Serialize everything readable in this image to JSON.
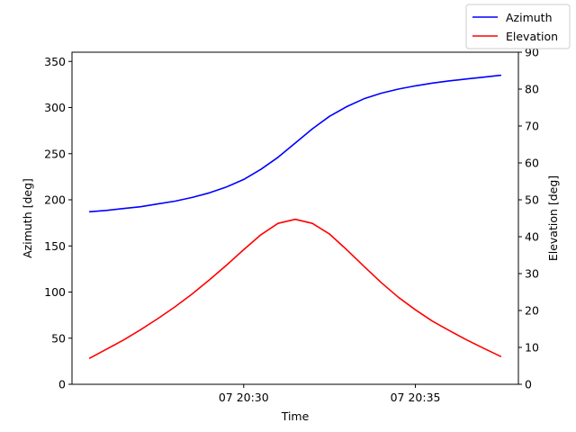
{
  "chart_data": {
    "type": "line",
    "xlabel": "Time",
    "x_ticks": [
      "07 20:30",
      "07 20:35"
    ],
    "x": [
      "20:25:30",
      "20:26:00",
      "20:26:30",
      "20:27:00",
      "20:27:30",
      "20:28:00",
      "20:28:30",
      "20:29:00",
      "20:29:30",
      "20:30:00",
      "20:30:30",
      "20:31:00",
      "20:31:30",
      "20:32:00",
      "20:32:30",
      "20:33:00",
      "20:33:30",
      "20:34:00",
      "20:34:30",
      "20:35:00",
      "20:35:30",
      "20:36:00",
      "20:36:30",
      "20:37:00",
      "20:37:30"
    ],
    "xlim": [
      "20:25:00",
      "20:38:00"
    ],
    "left_axis": {
      "label": "Azimuth [deg]",
      "ylim": [
        0,
        360
      ],
      "ticks": [
        0,
        50,
        100,
        150,
        200,
        250,
        300,
        350
      ]
    },
    "right_axis": {
      "label": "Elevation [deg]",
      "ylim": [
        0,
        90
      ],
      "ticks": [
        0,
        10,
        20,
        30,
        40,
        50,
        60,
        70,
        80,
        90
      ]
    },
    "series": [
      {
        "name": "Azimuth",
        "axis": "left",
        "color": "#0000ff",
        "values": [
          187,
          188.5,
          190.5,
          192.5,
          195.5,
          198.5,
          202.5,
          207.5,
          214,
          222,
          233,
          246,
          261.5,
          277,
          290.5,
          301,
          309.5,
          315.5,
          320,
          323.5,
          326.5,
          329,
          331,
          333,
          335
        ]
      },
      {
        "name": "Elevation",
        "axis": "right",
        "color": "#ff0000",
        "values": [
          7,
          9.5,
          12,
          14.8,
          17.8,
          21,
          24.5,
          28.3,
          32.3,
          36.5,
          40.5,
          43.6,
          44.7,
          43.6,
          40.7,
          36.5,
          32,
          27.6,
          23.6,
          20.2,
          17.1,
          14.5,
          12,
          9.7,
          7.5
        ]
      }
    ],
    "grid": false,
    "legend_position": "top-right"
  }
}
